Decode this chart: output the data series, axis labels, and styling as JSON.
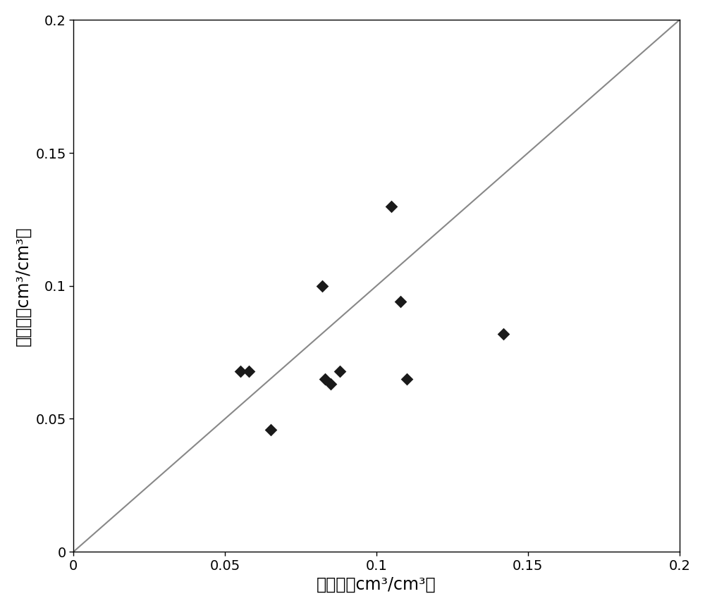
{
  "x_data": [
    0.055,
    0.058,
    0.065,
    0.082,
    0.083,
    0.085,
    0.088,
    0.105,
    0.108,
    0.11,
    0.142
  ],
  "y_data": [
    0.068,
    0.068,
    0.046,
    0.1,
    0.065,
    0.063,
    0.068,
    0.13,
    0.094,
    0.065,
    0.082
  ],
  "ref_line": [
    0,
    0.2
  ],
  "xlim": [
    0,
    0.2
  ],
  "ylim": [
    0,
    0.2
  ],
  "xticks": [
    0,
    0.05,
    0.1,
    0.15,
    0.2
  ],
  "yticks": [
    0,
    0.05,
    0.1,
    0.15,
    0.2
  ],
  "xtick_labels": [
    "0",
    "0.05",
    "0.1",
    "0.15",
    "0.2"
  ],
  "ytick_labels": [
    "0",
    "0.05",
    "0.1",
    "0.15",
    "0.2"
  ],
  "xlabel": "实测值（cm³/cm³）",
  "ylabel": "估算值（cm³/cm³）",
  "marker_color": "#1a1a1a",
  "marker_size": 9,
  "line_color": "#888888",
  "background_color": "#ffffff",
  "tick_label_fontsize": 14,
  "axis_label_fontsize": 17
}
